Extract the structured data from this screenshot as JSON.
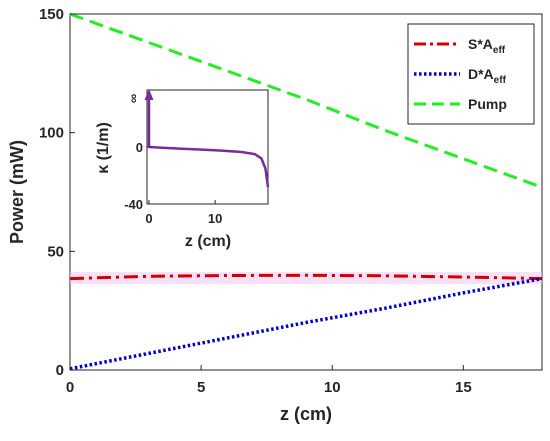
{
  "chart_data": [
    {
      "type": "line",
      "xlabel": "z (cm)",
      "ylabel": "Power (mW)",
      "xlim": [
        0,
        18
      ],
      "ylim": [
        0,
        150
      ],
      "xticks": [
        "0",
        "5",
        "10",
        "15"
      ],
      "yticks": [
        "0",
        "50",
        "100",
        "150"
      ],
      "legend_position": "top-right",
      "grid": false,
      "series": [
        {
          "name": "S*A",
          "name_subscript": "eff",
          "color": "#d40000",
          "style": "dash-dot",
          "x": [
            0,
            3,
            6,
            9,
            12,
            15,
            18
          ],
          "y": [
            38.5,
            39.5,
            39.8,
            39.9,
            39.7,
            39.2,
            38.5
          ]
        },
        {
          "name": "D*A",
          "name_subscript": "eff",
          "color": "#0000d4",
          "style": "dotted",
          "x": [
            0,
            3,
            6,
            9,
            12,
            15,
            18
          ],
          "y": [
            0.5,
            7,
            13.5,
            20,
            26,
            32.5,
            38.5
          ]
        },
        {
          "name": "Pump",
          "color": "#22ee22",
          "style": "dashed",
          "x": [
            0,
            3,
            6,
            9,
            12,
            15,
            18
          ],
          "y": [
            150,
            138,
            126,
            114,
            101,
            89,
            77
          ]
        }
      ]
    },
    {
      "type": "line",
      "xlabel": "z (cm)",
      "ylabel": "κ (1/m)",
      "xlim": [
        0,
        18
      ],
      "ylim": [
        -40,
        40
      ],
      "xticks": [
        "0",
        "10"
      ],
      "yticks": [
        "-40",
        "0",
        "∞"
      ],
      "series": [
        {
          "color": "#7a2a9a",
          "style": "solid",
          "x": [
            0,
            2,
            5,
            8,
            11,
            14,
            16,
            17,
            17.6,
            18
          ],
          "y": [
            0,
            -0.5,
            -1.2,
            -1.8,
            -2.5,
            -3.5,
            -5,
            -8,
            -15,
            -28
          ]
        }
      ]
    }
  ]
}
